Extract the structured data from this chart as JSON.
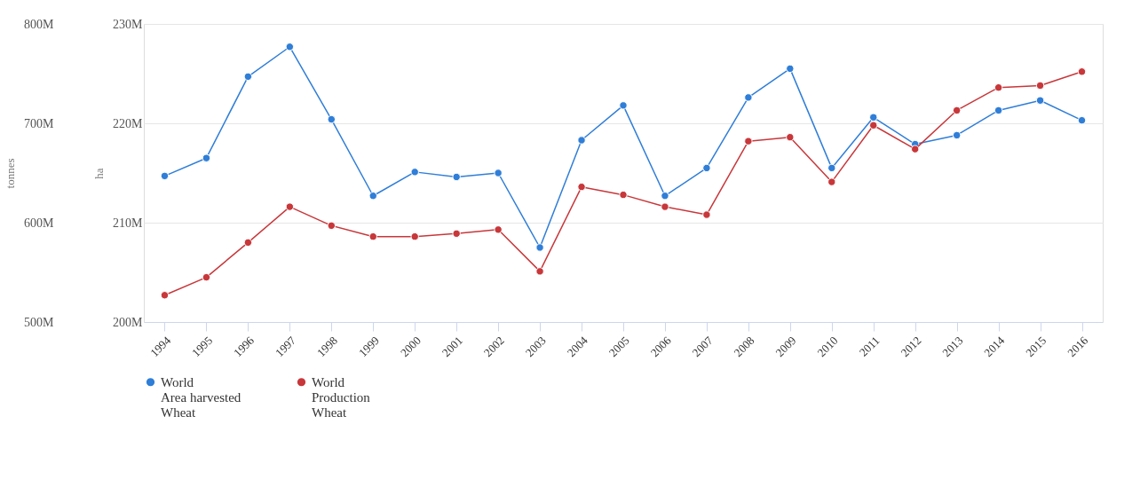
{
  "chart_data": {
    "type": "line",
    "categories": [
      "1994",
      "1995",
      "1996",
      "1997",
      "1998",
      "1999",
      "2000",
      "2001",
      "2002",
      "2003",
      "2004",
      "2005",
      "2006",
      "2007",
      "2008",
      "2009",
      "2010",
      "2011",
      "2012",
      "2013",
      "2014",
      "2015",
      "2016"
    ],
    "series": [
      {
        "name": "World\nArea harvested\nWheat",
        "color": "#2f7ed8",
        "axis": "y",
        "values": [
          214.7,
          216.5,
          224.7,
          227.7,
          220.4,
          212.7,
          215.1,
          214.6,
          215.0,
          207.5,
          218.3,
          221.8,
          212.7,
          215.5,
          222.6,
          225.5,
          215.5,
          220.6,
          217.9,
          218.8,
          221.3,
          222.3,
          220.3
        ]
      },
      {
        "name": "World\nProduction\nWheat",
        "color": "#c8373a",
        "axis": "y3",
        "values": [
          527,
          545,
          580,
          616,
          597,
          586,
          586,
          589,
          593,
          551,
          636,
          628,
          616,
          608,
          682,
          686,
          641,
          698,
          674,
          713,
          736,
          738,
          752
        ]
      }
    ],
    "ylabel": "ha",
    "y3label": "tonnes",
    "ylim": [
      200,
      230
    ],
    "yticks": [
      {
        "value": 200,
        "label": "200M"
      },
      {
        "value": 210,
        "label": "210M"
      },
      {
        "value": 220,
        "label": "220M"
      },
      {
        "value": 230,
        "label": "230M"
      }
    ],
    "y3lim": [
      500,
      800
    ],
    "y3ticks": [
      {
        "value": 500,
        "label": "500M"
      },
      {
        "value": 600,
        "label": "600M"
      },
      {
        "value": 700,
        "label": "700M"
      },
      {
        "value": 800,
        "label": "800M"
      }
    ],
    "grid": "y",
    "legend": "bottom",
    "marker": "circle",
    "line_style": "solid"
  }
}
